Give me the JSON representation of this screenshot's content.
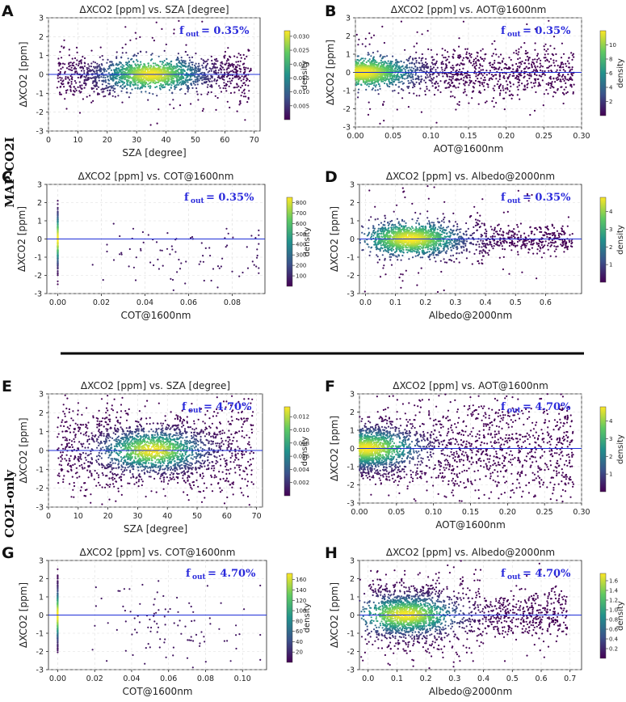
{
  "figure": {
    "section_labels": [
      "MAP-CO2I",
      "CO2I-only"
    ],
    "colormap": "viridis",
    "reference_line_color": "#1f2fd8",
    "fout_color": "#2a2adb"
  },
  "chart_data": [
    {
      "id": "A",
      "type": "scatter",
      "title": "ΔXCO2 [ppm] vs. SZA [degree]",
      "xlabel": "SZA [degree]",
      "ylabel": "ΔXCO2 [ppm]",
      "xlim": [
        0,
        72
      ],
      "ylim": [
        -3,
        3
      ],
      "xticks": [
        0,
        10,
        20,
        30,
        40,
        50,
        60,
        70
      ],
      "xtick_labels": [
        "0",
        "10",
        "20",
        "30",
        "40",
        "50",
        "60",
        "70"
      ],
      "yticks": [
        -3,
        -2,
        -1,
        0,
        1,
        2,
        3
      ],
      "fout_label": "f",
      "fout_sub": "out",
      "fout_value": "= 0.35%",
      "colorbar": {
        "label": "density",
        "ticks": [
          "0.005",
          "0.010",
          "0.015",
          "0.020",
          "0.025",
          "0.030"
        ],
        "tick_vals": [
          0.005,
          0.01,
          0.015,
          0.02,
          0.025,
          0.03
        ],
        "range": [
          0,
          0.032
        ]
      },
      "clusters": [
        {
          "x": [
            3,
            68
          ],
          "y_center": 0,
          "y_spread": 0.5,
          "density": "main band; peak near SZA 35"
        }
      ]
    },
    {
      "id": "B",
      "type": "scatter",
      "title": "ΔXCO2 [ppm] vs. AOT@1600nm",
      "xlabel": "AOT@1600nm",
      "ylabel": "ΔXCO2 [ppm]",
      "xlim": [
        0,
        0.3
      ],
      "ylim": [
        -3,
        3
      ],
      "xticks": [
        0,
        0.05,
        0.1,
        0.15,
        0.2,
        0.25,
        0.3
      ],
      "xtick_labels": [
        "0.00",
        "0.05",
        "0.10",
        "0.15",
        "0.20",
        "0.25",
        "0.30"
      ],
      "yticks": [
        -3,
        -2,
        -1,
        0,
        1,
        2,
        3
      ],
      "fout_label": "f",
      "fout_sub": "out",
      "fout_value": "= 0.35%",
      "colorbar": {
        "label": "density",
        "ticks": [
          "2",
          "4",
          "6",
          "8",
          "10"
        ],
        "tick_vals": [
          2,
          4,
          6,
          8,
          10
        ],
        "range": [
          0,
          12
        ]
      },
      "clusters": [
        {
          "x": [
            0,
            0.29
          ],
          "y_center": 0,
          "y_spread": 0.5,
          "density": "peak near AOT 0.01"
        }
      ]
    },
    {
      "id": "C",
      "type": "scatter",
      "title": "ΔXCO2 [ppm] vs. COT@1600nm",
      "xlabel": "COT@1600nm",
      "ylabel": "ΔXCO2 [ppm]",
      "xlim": [
        -0.005,
        0.095
      ],
      "ylim": [
        -3,
        3
      ],
      "xticks": [
        0,
        0.02,
        0.04,
        0.06,
        0.08
      ],
      "xtick_labels": [
        "0.00",
        "0.02",
        "0.04",
        "0.06",
        "0.08"
      ],
      "yticks": [
        -3,
        -2,
        -1,
        0,
        1,
        2,
        3
      ],
      "fout_label": "f",
      "fout_sub": "out",
      "fout_value": "= 0.35%",
      "colorbar": {
        "label": "density",
        "ticks": [
          "100",
          "200",
          "300",
          "400",
          "500",
          "600",
          "700",
          "800"
        ],
        "tick_vals": [
          100,
          200,
          300,
          400,
          500,
          600,
          700,
          800
        ],
        "range": [
          0,
          850
        ]
      },
      "clusters": [
        {
          "x": [
            0,
            0.001
          ],
          "y_center": 0,
          "y_spread": 0.8,
          "density": "dense column at COT 0"
        },
        {
          "x": [
            0.01,
            0.093
          ],
          "y_center": -1.3,
          "y_spread": 1.0,
          "density": "sparse"
        }
      ]
    },
    {
      "id": "D",
      "type": "scatter",
      "title": "ΔXCO2 [ppm] vs. Albedo@2000nm",
      "xlabel": "Albedo@2000nm",
      "ylabel": "ΔXCO2 [ppm]",
      "xlim": [
        -0.02,
        0.72
      ],
      "ylim": [
        -3,
        3
      ],
      "xticks": [
        0,
        0.1,
        0.2,
        0.3,
        0.4,
        0.5,
        0.6
      ],
      "xtick_labels": [
        "0.0",
        "0.1",
        "0.2",
        "0.3",
        "0.4",
        "0.5",
        "0.6"
      ],
      "yticks": [
        -3,
        -2,
        -1,
        0,
        1,
        2,
        3
      ],
      "fout_label": "f",
      "fout_sub": "out",
      "fout_value": "= 0.35%",
      "colorbar": {
        "label": "density",
        "ticks": [
          "1",
          "2",
          "3",
          "4"
        ],
        "tick_vals": [
          1,
          2,
          3,
          4
        ],
        "range": [
          0,
          4.8
        ]
      },
      "clusters": [
        {
          "x": [
            0.03,
            0.68
          ],
          "y_center": 0,
          "y_spread": 0.6,
          "density": "peak near albedo 0.15"
        }
      ]
    },
    {
      "id": "E",
      "type": "scatter",
      "title": "ΔXCO2 [ppm] vs. SZA [degree]",
      "xlabel": "SZA [degree]",
      "ylabel": "ΔXCO2 [ppm]",
      "xlim": [
        0,
        72
      ],
      "ylim": [
        -3,
        3
      ],
      "xticks": [
        0,
        10,
        20,
        30,
        40,
        50,
        60,
        70
      ],
      "xtick_labels": [
        "0",
        "10",
        "20",
        "30",
        "40",
        "50",
        "60",
        "70"
      ],
      "yticks": [
        -3,
        -2,
        -1,
        0,
        1,
        2,
        3
      ],
      "fout_label": "f",
      "fout_sub": "out",
      "fout_value": "= 4.70%",
      "colorbar": {
        "label": "density",
        "ticks": [
          "0.002",
          "0.004",
          "0.006",
          "0.008",
          "0.010",
          "0.012"
        ],
        "tick_vals": [
          0.002,
          0.004,
          0.006,
          0.008,
          0.01,
          0.012
        ],
        "range": [
          0,
          0.0135
        ]
      },
      "clusters": [
        {
          "x": [
            4,
            70
          ],
          "y_center": 0,
          "y_spread": 1.1,
          "density": "broad; peak near SZA 35"
        }
      ]
    },
    {
      "id": "F",
      "type": "scatter",
      "title": "ΔXCO2 [ppm] vs. AOT@1600nm",
      "xlabel": "AOT@1600nm",
      "ylabel": "ΔXCO2 [ppm]",
      "xlim": [
        0,
        0.3
      ],
      "ylim": [
        -3,
        3
      ],
      "xticks": [
        0,
        0.05,
        0.1,
        0.15,
        0.2,
        0.25,
        0.3
      ],
      "xtick_labels": [
        "0.00",
        "0.05",
        "0.10",
        "0.15",
        "0.20",
        "0.25",
        "0.30"
      ],
      "yticks": [
        -3,
        -2,
        -1,
        0,
        1,
        2,
        3
      ],
      "fout_label": "f",
      "fout_sub": "out",
      "fout_value": "= 4.70%",
      "colorbar": {
        "label": "density",
        "ticks": [
          "1",
          "2",
          "3",
          "4"
        ],
        "tick_vals": [
          1,
          2,
          3,
          4
        ],
        "range": [
          0,
          4.8
        ]
      },
      "clusters": [
        {
          "x": [
            0,
            0.29
          ],
          "y_center": 0,
          "y_spread": 1.1,
          "density": "peak near AOT 0.01"
        }
      ]
    },
    {
      "id": "G",
      "type": "scatter",
      "title": "ΔXCO2 [ppm] vs. COT@1600nm",
      "xlabel": "COT@1600nm",
      "ylabel": "ΔXCO2 [ppm]",
      "xlim": [
        -0.005,
        0.113
      ],
      "ylim": [
        -3,
        3
      ],
      "xticks": [
        0,
        0.02,
        0.04,
        0.06,
        0.08,
        0.1
      ],
      "xtick_labels": [
        "0.00",
        "0.02",
        "0.04",
        "0.06",
        "0.08",
        "0.10"
      ],
      "yticks": [
        -3,
        -2,
        -1,
        0,
        1,
        2,
        3
      ],
      "fout_label": "f",
      "fout_sub": "out",
      "fout_value": "= 4.70%",
      "colorbar": {
        "label": "density",
        "ticks": [
          "20",
          "40",
          "60",
          "80",
          "100",
          "120",
          "140",
          "160"
        ],
        "tick_vals": [
          20,
          40,
          60,
          80,
          100,
          120,
          140,
          160
        ],
        "range": [
          0,
          172
        ]
      },
      "clusters": [
        {
          "x": [
            0,
            0.001
          ],
          "y_center": 0,
          "y_spread": 1.0,
          "density": "dense column at COT 0"
        },
        {
          "x": [
            0.01,
            0.11
          ],
          "y_center": -1.0,
          "y_spread": 1.3,
          "density": "sparse"
        }
      ]
    },
    {
      "id": "H",
      "type": "scatter",
      "title": "ΔXCO2 [ppm] vs. Albedo@2000nm",
      "xlabel": "Albedo@2000nm",
      "ylabel": "ΔXCO2 [ppm]",
      "xlim": [
        -0.03,
        0.74
      ],
      "ylim": [
        -3,
        3
      ],
      "xticks": [
        0,
        0.1,
        0.2,
        0.3,
        0.4,
        0.5,
        0.6,
        0.7
      ],
      "xtick_labels": [
        "0.0",
        "0.1",
        "0.2",
        "0.3",
        "0.4",
        "0.5",
        "0.6",
        "0.7"
      ],
      "yticks": [
        -3,
        -2,
        -1,
        0,
        1,
        2,
        3
      ],
      "fout_label": "f",
      "fout_sub": "out",
      "fout_value": "= 4.70%",
      "colorbar": {
        "label": "density",
        "ticks": [
          "0.2",
          "0.4",
          "0.6",
          "0.8",
          "1.0",
          "1.2",
          "1.4",
          "1.6"
        ],
        "tick_vals": [
          0.2,
          0.4,
          0.6,
          0.8,
          1.0,
          1.2,
          1.4,
          1.6
        ],
        "range": [
          0,
          1.75
        ]
      },
      "clusters": [
        {
          "x": [
            0.05,
            0.7
          ],
          "y_center": 0,
          "y_spread": 1.1,
          "density": "peak near albedo 0.13"
        }
      ]
    }
  ]
}
